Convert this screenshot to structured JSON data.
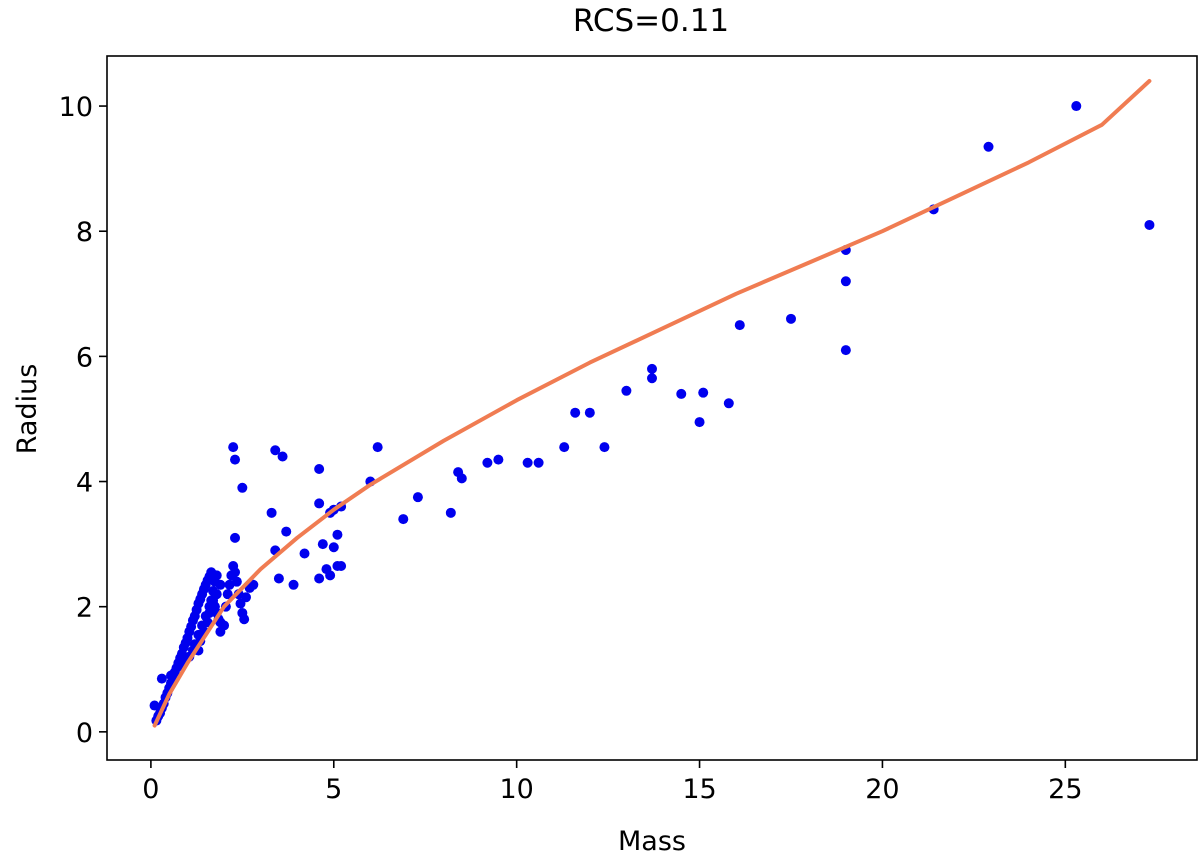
{
  "chart_data": {
    "type": "scatter",
    "title": "RCS=0.11",
    "xlabel": "Mass",
    "ylabel": "Radius",
    "xlim": [
      -1.2,
      28.6
    ],
    "ylim": [
      -0.45,
      10.8
    ],
    "xticks": [
      0,
      5,
      10,
      15,
      20,
      25
    ],
    "yticks": [
      0,
      2,
      4,
      6,
      8,
      10
    ],
    "grid": false,
    "colors": {
      "points": "#0000ee",
      "fit": "#f07c52"
    },
    "series": [
      {
        "kind": "points",
        "x": [
          0.1,
          0.15,
          0.2,
          0.25,
          0.3,
          0.35,
          0.4,
          0.45,
          0.5,
          0.55,
          0.6,
          0.65,
          0.7,
          0.75,
          0.8,
          0.85,
          0.9,
          0.95,
          1.0,
          1.05,
          1.1,
          1.15,
          1.2,
          1.25,
          1.3,
          1.35,
          1.4,
          1.45,
          1.5,
          1.55,
          1.6,
          1.65,
          1.7,
          1.75,
          1.8,
          1.85,
          1.9,
          2.0,
          2.05,
          2.1,
          2.15,
          2.2,
          2.25,
          2.3,
          2.35,
          2.4,
          2.45,
          2.5,
          2.55,
          2.6,
          2.7,
          2.8,
          1.2,
          1.3,
          1.4,
          1.5,
          1.6,
          1.65,
          1.7,
          1.75,
          1.8,
          1.9,
          1.3,
          1.35,
          1.45,
          1.55,
          1.6,
          1.7,
          1.8,
          1.9,
          0.3,
          0.55,
          0.75,
          0.9,
          1.05,
          1.15,
          2.25,
          2.3,
          2.5,
          2.3,
          3.4,
          3.6,
          4.6,
          3.3,
          3.7,
          5.2,
          4.9,
          4.6,
          5.0,
          4.7,
          5.1,
          5.0,
          4.6,
          4.9,
          5.2,
          3.4,
          3.5,
          3.9,
          4.2,
          4.8,
          5.1,
          6.2,
          6.0,
          6.9,
          7.3,
          8.2,
          8.4,
          8.5,
          9.2,
          9.5,
          10.3,
          10.6,
          11.3,
          11.6,
          12.0,
          12.4,
          13.0,
          13.7,
          13.7,
          14.5,
          15.0,
          15.1,
          15.8,
          16.1,
          17.5,
          19.0,
          19.0,
          19.0,
          21.4,
          22.9,
          25.3,
          27.3
        ],
        "y": [
          0.42,
          0.18,
          0.25,
          0.3,
          0.38,
          0.45,
          0.55,
          0.62,
          0.7,
          0.78,
          0.85,
          0.95,
          1.02,
          1.1,
          1.18,
          1.25,
          1.35,
          1.42,
          1.5,
          1.6,
          1.68,
          1.78,
          1.85,
          1.95,
          2.05,
          2.12,
          2.2,
          2.28,
          2.35,
          2.42,
          2.48,
          2.55,
          2.1,
          2.0,
          1.9,
          1.8,
          1.75,
          1.7,
          2.0,
          2.2,
          2.35,
          2.5,
          2.65,
          2.55,
          2.4,
          2.2,
          2.05,
          1.9,
          1.8,
          2.15,
          2.3,
          2.35,
          1.4,
          1.55,
          1.7,
          1.85,
          2.0,
          2.1,
          2.25,
          2.4,
          2.5,
          1.6,
          1.3,
          1.45,
          1.6,
          1.75,
          1.9,
          2.05,
          2.2,
          2.35,
          0.85,
          0.9,
          1.05,
          1.1,
          1.2,
          1.3,
          4.55,
          4.35,
          3.9,
          3.1,
          4.5,
          4.4,
          4.2,
          3.5,
          3.2,
          3.6,
          3.5,
          3.65,
          3.55,
          3.0,
          3.15,
          2.95,
          2.45,
          2.5,
          2.65,
          2.9,
          2.45,
          2.35,
          2.85,
          2.6,
          2.65,
          4.55,
          4.0,
          3.4,
          3.75,
          3.5,
          4.15,
          4.05,
          4.3,
          4.35,
          4.3,
          4.3,
          4.55,
          5.1,
          5.1,
          4.55,
          5.45,
          5.8,
          5.65,
          5.4,
          4.95,
          5.42,
          5.25,
          6.5,
          6.6,
          7.7,
          7.2,
          6.1,
          8.35,
          9.35,
          10.0,
          8.1
        ]
      },
      {
        "kind": "line",
        "x": [
          0.1,
          0.5,
          1.0,
          1.5,
          2.0,
          3.0,
          4.0,
          5.0,
          6.0,
          8.0,
          10.0,
          12.0,
          14.0,
          16.0,
          18.0,
          20.0,
          22.0,
          24.0,
          26.0,
          27.3
        ],
        "y": [
          0.1,
          0.6,
          1.1,
          1.55,
          2.0,
          2.6,
          3.1,
          3.55,
          3.95,
          4.65,
          5.3,
          5.9,
          6.45,
          7.0,
          7.5,
          8.0,
          8.55,
          9.1,
          9.7,
          10.4
        ]
      }
    ]
  }
}
